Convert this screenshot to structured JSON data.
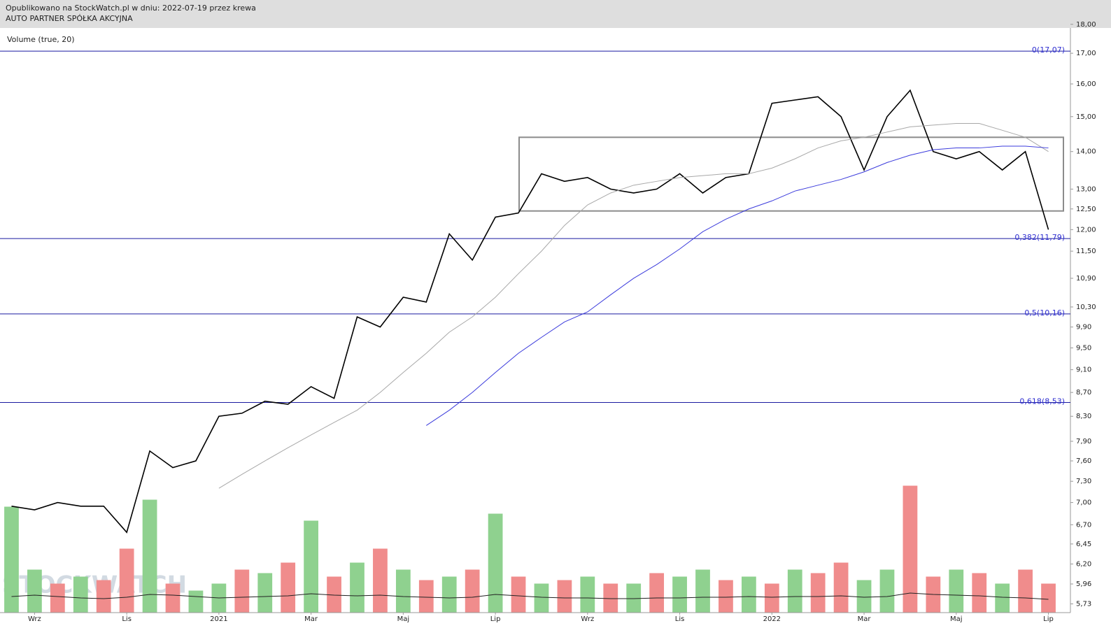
{
  "chart_data": {
    "type": "line",
    "subtitle": "Opublikowano na StockWatch.pl w dniu: 2022-07-19 przez krewa",
    "title": "AUTO PARTNER SPÓŁKA AKCYJNA",
    "watermark": "STOCKWATCH",
    "log_scale": true,
    "categories": [
      null,
      "Wrz",
      null,
      null,
      null,
      "Lis",
      null,
      null,
      null,
      "2021",
      null,
      null,
      null,
      "Mar",
      null,
      null,
      null,
      "Maj",
      null,
      null,
      null,
      "Lip",
      null,
      null,
      null,
      "Wrz",
      null,
      null,
      null,
      "Lis",
      null,
      null,
      null,
      "2022",
      null,
      null,
      null,
      "Mar",
      null,
      null,
      null,
      "Maj",
      null,
      null,
      null,
      "Lip"
    ],
    "series": [
      {
        "color": "#000000",
        "values": [
          6.95,
          6.9,
          7.0,
          6.95,
          6.95,
          6.6,
          7.75,
          7.5,
          7.6,
          8.3,
          8.35,
          8.55,
          8.5,
          8.8,
          8.6,
          10.1,
          9.9,
          10.5,
          10.4,
          11.9,
          11.3,
          12.3,
          12.4,
          13.4,
          13.2,
          13.3,
          13.0,
          12.9,
          13.0,
          13.4,
          12.9,
          13.3,
          13.4,
          15.4,
          15.5,
          15.6,
          15.0,
          13.5,
          15.0,
          15.8,
          14.0,
          13.8,
          14.0,
          13.5,
          14.0,
          12.0
        ]
      },
      {
        "color": "#a8a8a8",
        "values": [
          null,
          null,
          null,
          null,
          null,
          null,
          null,
          null,
          null,
          7.2,
          7.4,
          7.6,
          7.8,
          8.0,
          8.2,
          8.4,
          8.7,
          9.05,
          9.4,
          9.8,
          10.1,
          10.5,
          11.0,
          11.5,
          12.1,
          12.6,
          12.9,
          13.1,
          13.2,
          13.3,
          13.35,
          13.4,
          13.4,
          13.55,
          13.8,
          14.1,
          14.3,
          14.4,
          14.55,
          14.7,
          14.75,
          14.8,
          14.8,
          14.6,
          14.4,
          14.0
        ]
      },
      {
        "color": "#3b3bdc",
        "values": [
          null,
          null,
          null,
          null,
          null,
          null,
          null,
          null,
          null,
          null,
          null,
          null,
          null,
          null,
          null,
          null,
          null,
          null,
          8.15,
          8.4,
          8.7,
          9.05,
          9.4,
          9.7,
          10.0,
          10.2,
          10.55,
          10.9,
          11.2,
          11.55,
          11.95,
          12.25,
          12.5,
          12.7,
          12.95,
          13.1,
          13.25,
          13.45,
          13.7,
          13.9,
          14.05,
          14.1,
          14.1,
          14.15,
          14.15,
          14.1
        ]
      }
    ],
    "ylim": [
      5.64,
      17.87
    ],
    "yticks": [
      {
        "value": 18,
        "label": "18,00"
      },
      {
        "value": 17,
        "label": "17,00"
      },
      {
        "value": 16,
        "label": "16,00"
      },
      {
        "value": 15,
        "label": "15,00"
      },
      {
        "value": 14,
        "label": "14,00"
      },
      {
        "value": 13,
        "label": "13,00"
      },
      {
        "value": 12.5,
        "label": "12,50"
      },
      {
        "value": 12,
        "label": "12,00"
      },
      {
        "value": 11.5,
        "label": "11,50"
      },
      {
        "value": 10.9,
        "label": "10,90"
      },
      {
        "value": 10.3,
        "label": "10,30"
      },
      {
        "value": 9.9,
        "label": "9,90"
      },
      {
        "value": 9.5,
        "label": "9,50"
      },
      {
        "value": 9.1,
        "label": "9,10"
      },
      {
        "value": 8.7,
        "label": "8,70"
      },
      {
        "value": 8.3,
        "label": "8,30"
      },
      {
        "value": 7.9,
        "label": "7,90"
      },
      {
        "value": 7.6,
        "label": "7,60"
      },
      {
        "value": 7.3,
        "label": "7,30"
      },
      {
        "value": 7,
        "label": "7,00"
      },
      {
        "value": 6.7,
        "label": "6,70"
      },
      {
        "value": 6.45,
        "label": "6,45"
      },
      {
        "value": 6.2,
        "label": "6,20"
      },
      {
        "value": 5.96,
        "label": "5,96"
      },
      {
        "value": 5.73,
        "label": "5,73"
      }
    ],
    "levels": [
      {
        "value": 17.07,
        "label": "0(17,07)"
      },
      {
        "value": 11.79,
        "label": "0,382(11,79)"
      },
      {
        "value": 10.16,
        "label": "0,5(10,16)"
      },
      {
        "value": 8.53,
        "label": "0,618(8,53)"
      }
    ],
    "level_color": "#1a1aa0",
    "range_box": {
      "low": 12.45,
      "high": 14.4,
      "color": "#8c8c8c"
    },
    "volume": {
      "label": "Volume (true, 20)",
      "vlim": [
        0,
        200
      ],
      "values": [
        150,
        60,
        40,
        50,
        45,
        90,
        160,
        40,
        30,
        40,
        60,
        55,
        70,
        130,
        50,
        70,
        90,
        60,
        45,
        50,
        60,
        140,
        50,
        40,
        45,
        50,
        40,
        40,
        55,
        50,
        60,
        45,
        50,
        40,
        60,
        55,
        70,
        45,
        60,
        180,
        50,
        60,
        55,
        40,
        60,
        40
      ],
      "colors": [
        "#8fd18f",
        "#8fd18f",
        "#f08c8c",
        "#8fd18f",
        "#f08c8c",
        "#f08c8c",
        "#8fd18f",
        "#f08c8c",
        "#8fd18f",
        "#8fd18f",
        "#f08c8c",
        "#8fd18f",
        "#f08c8c",
        "#8fd18f",
        "#f08c8c",
        "#8fd18f",
        "#f08c8c",
        "#8fd18f",
        "#f08c8c",
        "#8fd18f",
        "#f08c8c",
        "#8fd18f",
        "#f08c8c",
        "#8fd18f",
        "#f08c8c",
        "#8fd18f",
        "#f08c8c",
        "#8fd18f",
        "#f08c8c",
        "#8fd18f",
        "#8fd18f",
        "#f08c8c",
        "#8fd18f",
        "#f08c8c",
        "#8fd18f",
        "#f08c8c",
        "#f08c8c",
        "#8fd18f",
        "#8fd18f",
        "#f08c8c",
        "#f08c8c",
        "#8fd18f",
        "#f08c8c",
        "#8fd18f",
        "#f08c8c",
        "#f08c8c"
      ],
      "average": [
        22,
        24,
        22,
        20,
        19,
        21,
        25,
        24,
        22,
        20,
        21,
        22,
        23,
        26,
        24,
        23,
        24,
        22,
        21,
        20,
        21,
        25,
        23,
        21,
        20,
        20,
        19,
        19,
        20,
        20,
        21,
        21,
        22,
        21,
        22,
        22,
        23,
        21,
        22,
        27,
        25,
        24,
        23,
        21,
        20,
        18
      ],
      "average_color": "#222222"
    }
  }
}
